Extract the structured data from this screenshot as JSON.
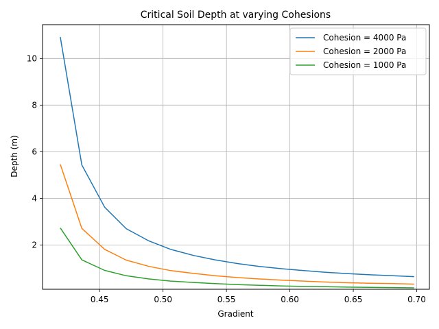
{
  "chart_data": {
    "type": "line",
    "title": "Critical Soil Depth at varying Cohesions",
    "xlabel": "Gradient",
    "ylabel": "Depth (m)",
    "xlim": [
      0.405,
      0.71
    ],
    "ylim": [
      0.1,
      11.45
    ],
    "xticks": [
      0.45,
      0.5,
      0.55,
      0.6,
      0.65,
      0.7
    ],
    "xtick_labels": [
      "0.45",
      "0.50",
      "0.55",
      "0.60",
      "0.65",
      "0.70"
    ],
    "yticks": [
      2,
      4,
      6,
      8,
      10
    ],
    "ytick_labels": [
      "2",
      "4",
      "6",
      "8",
      "10"
    ],
    "grid": true,
    "legend_position": "top-right",
    "x": [
      0.419,
      0.436,
      0.454,
      0.471,
      0.489,
      0.506,
      0.524,
      0.541,
      0.559,
      0.576,
      0.594,
      0.611,
      0.628,
      0.646,
      0.663,
      0.681,
      0.698
    ],
    "series": [
      {
        "name": "Cohesion = 4000 Pa",
        "color": "#1f77b4",
        "values": [
          10.92,
          5.43,
          3.62,
          2.7,
          2.17,
          1.81,
          1.55,
          1.36,
          1.2,
          1.08,
          0.98,
          0.9,
          0.83,
          0.77,
          0.72,
          0.68,
          0.64
        ]
      },
      {
        "name": "Cohesion = 2000 Pa",
        "color": "#ff7f0e",
        "values": [
          5.46,
          2.71,
          1.81,
          1.35,
          1.08,
          0.9,
          0.78,
          0.68,
          0.6,
          0.54,
          0.49,
          0.45,
          0.41,
          0.38,
          0.36,
          0.34,
          0.32
        ]
      },
      {
        "name": "Cohesion = 1000 Pa",
        "color": "#2ca02c",
        "values": [
          2.73,
          1.36,
          0.91,
          0.68,
          0.54,
          0.45,
          0.39,
          0.34,
          0.3,
          0.27,
          0.24,
          0.22,
          0.21,
          0.19,
          0.18,
          0.17,
          0.16
        ]
      }
    ]
  }
}
